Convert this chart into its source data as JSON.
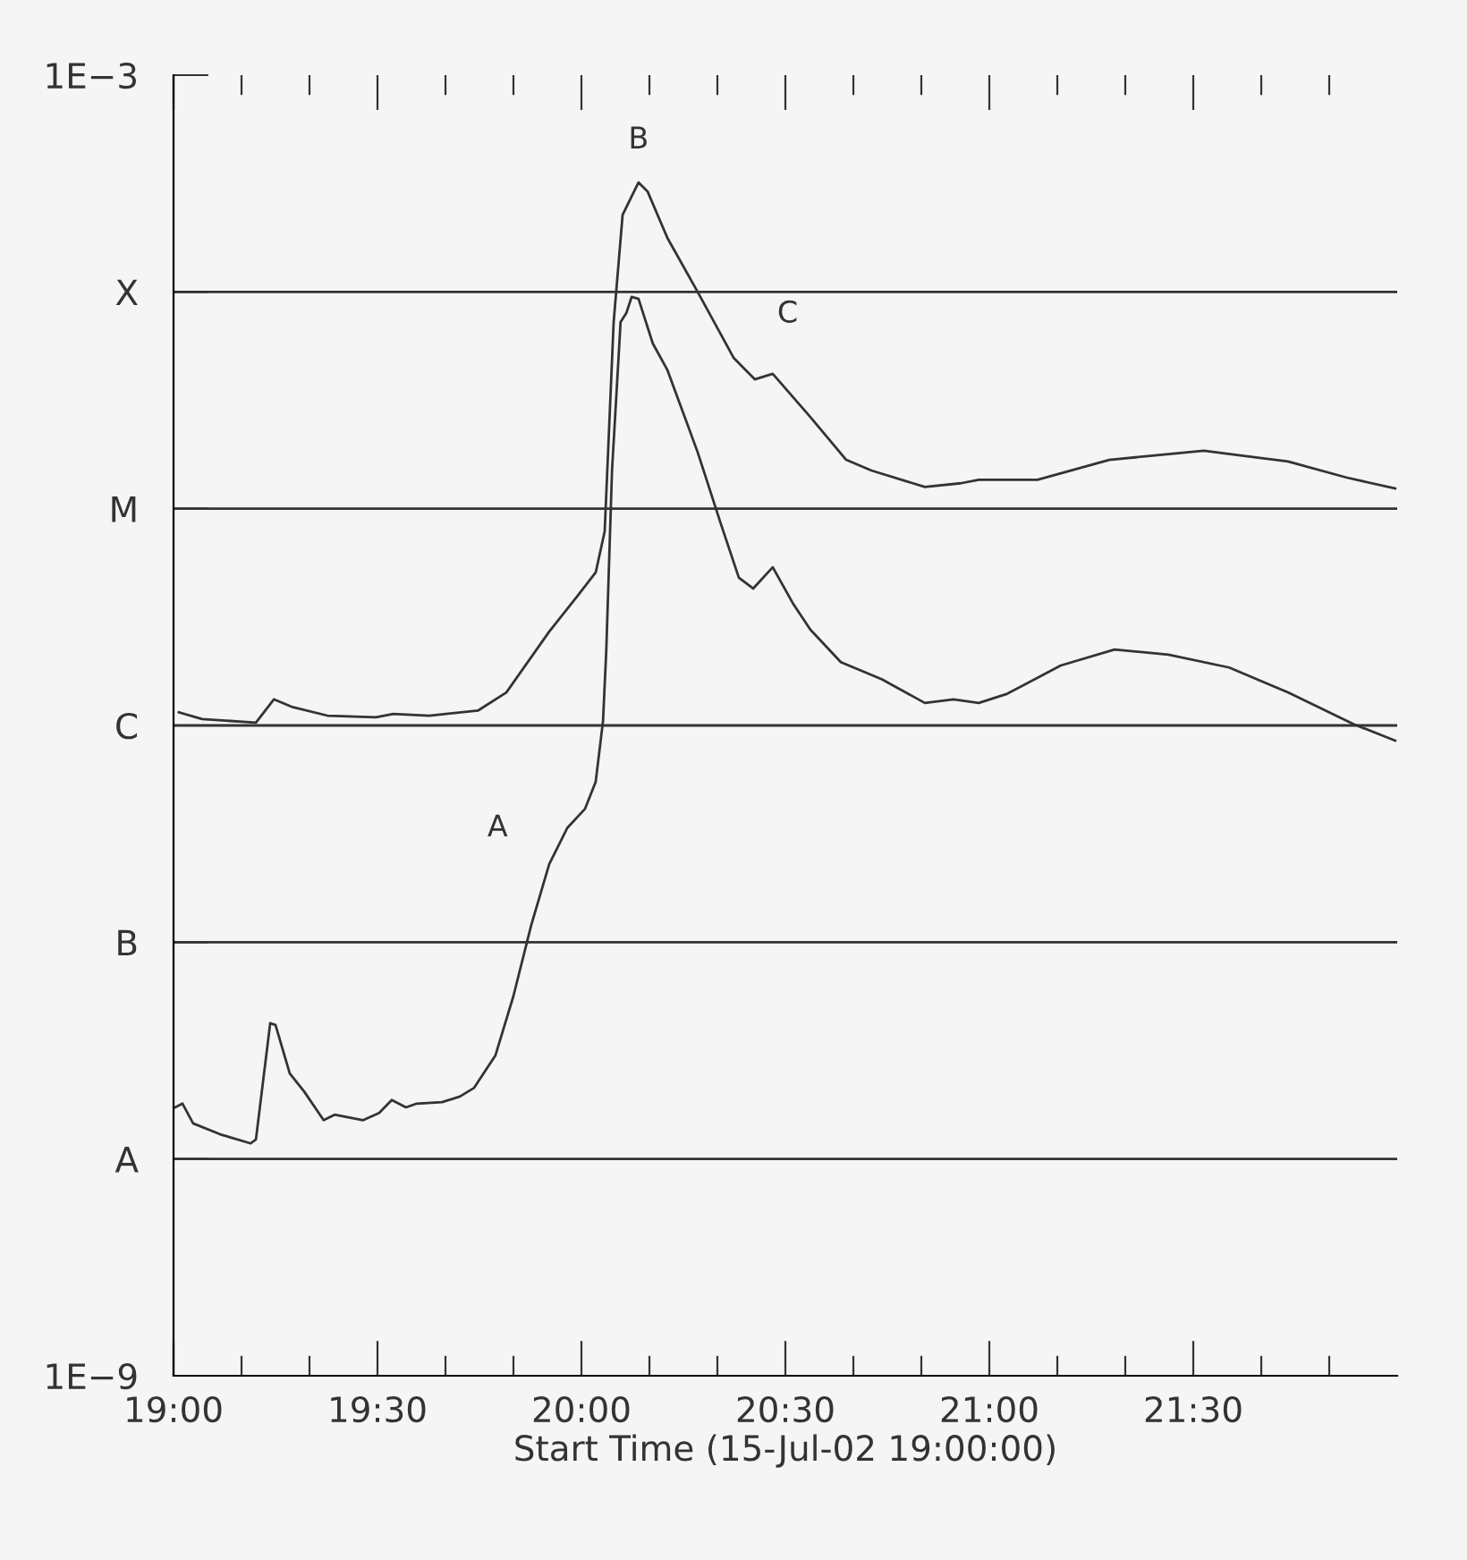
{
  "chart_data": {
    "type": "line",
    "xlabel": "Start Time (15-Jul-02 19:00:00)",
    "log": "y",
    "grid": false,
    "legend": false,
    "marker": "none",
    "line_style": "solid",
    "xlim": [
      19,
      22
    ],
    "ylim": [
      1e-09,
      0.001
    ],
    "xticks": [
      {
        "value": 19,
        "label": "19:00"
      },
      {
        "value": 19.1667,
        "label": null
      },
      {
        "value": 19.3333,
        "label": null
      },
      {
        "value": 19.5,
        "label": "19:30"
      },
      {
        "value": 19.6667,
        "label": null
      },
      {
        "value": 19.8333,
        "label": null
      },
      {
        "value": 20,
        "label": "20:00"
      },
      {
        "value": 20.1667,
        "label": null
      },
      {
        "value": 20.3333,
        "label": null
      },
      {
        "value": 20.5,
        "label": "20:30"
      },
      {
        "value": 20.6667,
        "label": null
      },
      {
        "value": 20.8333,
        "label": null
      },
      {
        "value": 21,
        "label": "21:00"
      },
      {
        "value": 21.1667,
        "label": null
      },
      {
        "value": 21.3333,
        "label": null
      },
      {
        "value": 21.5,
        "label": "21:30"
      },
      {
        "value": 21.6667,
        "label": null
      },
      {
        "value": 21.8333,
        "label": null
      }
    ],
    "yticks": [
      {
        "value": 1e-09,
        "label": "1E−9"
      },
      {
        "value": 1e-08,
        "label": "A"
      },
      {
        "value": 1e-07,
        "label": "B"
      },
      {
        "value": 1e-06,
        "label": "C"
      },
      {
        "value": 1e-05,
        "label": "M"
      },
      {
        "value": 0.0001,
        "label": "X"
      },
      {
        "value": 0.001,
        "label": "1E−3"
      }
    ],
    "ref_lines": [
      {
        "axis": "y",
        "value": 1e-08,
        "color": "#333333"
      },
      {
        "axis": "y",
        "value": 1e-07,
        "color": "#333333"
      },
      {
        "axis": "y",
        "value": 1e-06,
        "color": "#333333"
      },
      {
        "axis": "y",
        "value": 1e-05,
        "color": "#333333"
      },
      {
        "axis": "y",
        "value": 0.0001,
        "color": "#333333"
      }
    ],
    "annotations": [
      {
        "text": "A",
        "x": 19.965,
        "y": 3.36e-07
      },
      {
        "text": "B",
        "x": 20.14,
        "y": 0.00032
      },
      {
        "text": "C",
        "x": 20.469,
        "y": 4.19e-05
      }
    ],
    "series": [
      {
        "color": "#333333",
        "x": [
          19.013,
          19.07,
          19.202,
          19.246,
          19.289,
          19.377,
          19.496,
          19.539,
          19.627,
          19.746,
          19.816,
          19.921,
          19.991,
          20.035,
          20.057,
          20.079,
          20.101,
          20.14,
          20.162,
          20.211,
          20.285,
          20.373,
          20.425,
          20.469,
          20.561,
          20.649,
          20.711,
          20.842,
          20.93,
          20.974,
          21.118,
          21.294,
          21.526,
          21.732,
          21.877,
          21.995
        ],
        "values": [
          1.15e-06,
          1.07e-06,
          1.03e-06,
          1.32e-06,
          1.22e-06,
          1.11e-06,
          1.09e-06,
          1.13e-06,
          1.11e-06,
          1.17e-06,
          1.42e-06,
          2.71e-06,
          3.97e-06,
          5.08e-06,
          7.86e-06,
          7.26e-05,
          0.000227,
          0.00032,
          0.000291,
          0.000177,
          0.0001,
          4.97e-05,
          3.95e-05,
          4.19e-05,
          2.65e-05,
          1.68e-05,
          1.5e-05,
          1.26e-05,
          1.31e-05,
          1.36e-05,
          1.36e-05,
          1.68e-05,
          1.85e-05,
          1.65e-05,
          1.39e-05,
          1.24e-05
        ]
      },
      {
        "color": "#333333",
        "x": [
          19.004,
          19.022,
          19.048,
          19.114,
          19.189,
          19.202,
          19.237,
          19.25,
          19.285,
          19.32,
          19.368,
          19.395,
          19.465,
          19.504,
          19.535,
          19.57,
          19.596,
          19.658,
          19.702,
          19.737,
          19.789,
          19.833,
          19.877,
          19.921,
          19.965,
          20.009,
          20.035,
          20.053,
          20.061,
          20.075,
          20.096,
          20.11,
          20.123,
          20.14,
          20.175,
          20.211,
          20.285,
          20.342,
          20.386,
          20.421,
          20.469,
          20.518,
          20.561,
          20.636,
          20.737,
          20.842,
          20.912,
          20.974,
          21.044,
          21.175,
          21.307,
          21.439,
          21.588,
          21.732,
          21.895,
          21.995
        ],
        "values": [
          1.73e-08,
          1.8e-08,
          1.46e-08,
          1.3e-08,
          1.18e-08,
          1.23e-08,
          4.23e-08,
          4.15e-08,
          2.48e-08,
          2.05e-08,
          1.51e-08,
          1.6e-08,
          1.51e-08,
          1.63e-08,
          1.87e-08,
          1.73e-08,
          1.8e-08,
          1.83e-08,
          1.94e-08,
          2.13e-08,
          3e-08,
          5.62e-08,
          1.2e-07,
          2.29e-07,
          3.36e-07,
          4.13e-07,
          5.5e-07,
          1.05e-06,
          2.24e-06,
          1.5e-05,
          7.26e-05,
          7.98e-05,
          9.48e-05,
          9.29e-05,
          5.78e-05,
          4.35e-05,
          1.82e-05,
          8.49e-06,
          4.8e-06,
          4.28e-06,
          5.37e-06,
          3.67e-06,
          2.77e-06,
          1.96e-06,
          1.63e-06,
          1.27e-06,
          1.32e-06,
          1.27e-06,
          1.4e-06,
          1.89e-06,
          2.24e-06,
          2.12e-06,
          1.85e-06,
          1.42e-06,
          1.01e-06,
          8.51e-07
        ]
      }
    ]
  }
}
